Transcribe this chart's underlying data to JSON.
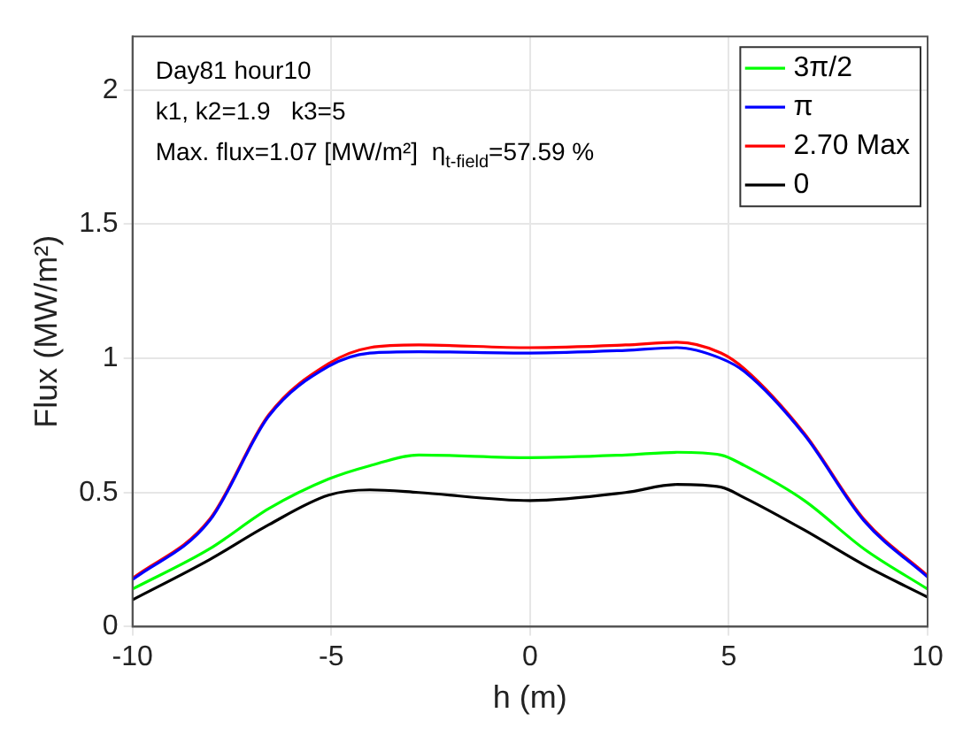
{
  "chart_data": {
    "type": "line",
    "xlabel": "h (m)",
    "ylabel": "Flux (MW/m²)",
    "annotations": [
      "Day81 hour10",
      "k1, k2=1.9   k3=5",
      "Max. flux=1.07 [MW/m²]  η$_{t-field}$=57.59 %"
    ],
    "x": [
      -10,
      -8.06,
      -6.57,
      -5.07,
      -4.03,
      -2.8,
      0,
      2.4,
      3.7,
      4.8,
      5.4,
      6.9,
      8.4,
      10
    ],
    "series": [
      {
        "name": "3π/2",
        "color": "#00ff00",
        "values": [
          0.14,
          0.29,
          0.44,
          0.55,
          0.6,
          0.64,
          0.63,
          0.64,
          0.65,
          0.64,
          0.6,
          0.47,
          0.29,
          0.14
        ]
      },
      {
        "name": "π",
        "color": "#0000ff",
        "values": [
          0.175,
          0.395,
          0.785,
          0.97,
          1.02,
          1.025,
          1.02,
          1.03,
          1.04,
          1.0,
          0.95,
          0.715,
          0.395,
          0.185
        ]
      },
      {
        "name": "2.70 Max",
        "color": "#ff0000",
        "values": [
          0.18,
          0.4,
          0.79,
          0.98,
          1.04,
          1.05,
          1.04,
          1.05,
          1.06,
          1.02,
          0.96,
          0.72,
          0.4,
          0.19
        ]
      },
      {
        "name": "0",
        "color": "#000000",
        "values": [
          0.1,
          0.25,
          0.38,
          0.49,
          0.51,
          0.5,
          0.47,
          0.5,
          0.53,
          0.52,
          0.48,
          0.36,
          0.23,
          0.11
        ]
      }
    ],
    "xlim": [
      -10,
      10
    ],
    "xticks": [
      -10,
      -5,
      0,
      5,
      10
    ],
    "ylim": [
      0,
      2.2
    ],
    "yticks": [
      0,
      0.5,
      1,
      1.5,
      2
    ],
    "grid": true,
    "legend": "top right",
    "marker": "none",
    "line_style": "solid"
  }
}
